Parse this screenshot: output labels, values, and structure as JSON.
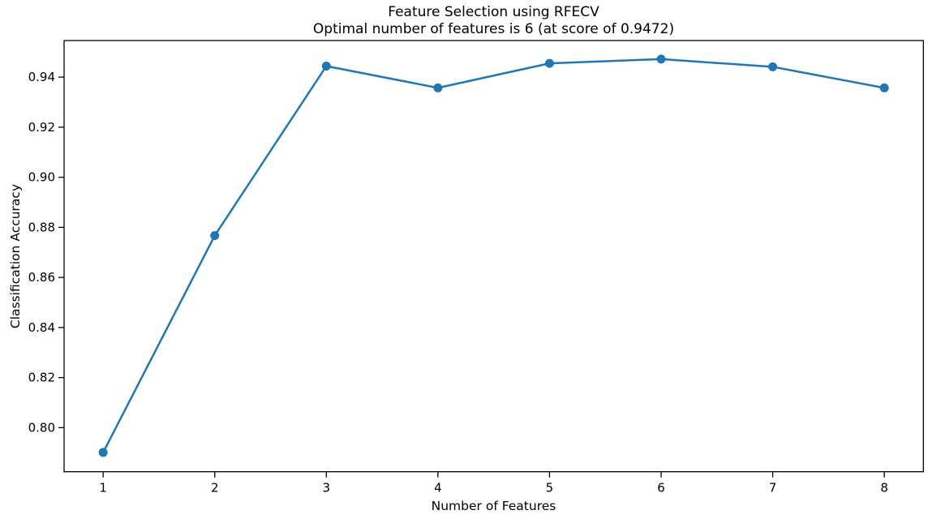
{
  "figure": {
    "background": "#ffffff"
  },
  "chart_data": {
    "type": "line",
    "title": "Feature Selection using RFECV",
    "subtitle": "Optimal number of features is 6 (at score of 0.9472)",
    "xlabel": "Number of Features",
    "ylabel": "Classification Accuracy",
    "x": [
      1,
      2,
      3,
      4,
      5,
      6,
      7,
      8
    ],
    "y": [
      0.7901,
      0.8767,
      0.9444,
      0.9357,
      0.9455,
      0.9472,
      0.9441,
      0.9357
    ],
    "optimal_n_features": 6,
    "optimal_score": 0.9472,
    "xticks": [
      1,
      2,
      3,
      4,
      5,
      6,
      7,
      8
    ],
    "yticks": [
      0.8,
      0.82,
      0.84,
      0.86,
      0.88,
      0.9,
      0.92,
      0.94
    ],
    "xlim": [
      0.65,
      8.35
    ],
    "ylim": [
      0.7824,
      0.9546
    ],
    "grid": false,
    "legend": null,
    "line_color": "#1f77b4",
    "marker": "o",
    "axis_color": "#000000"
  }
}
